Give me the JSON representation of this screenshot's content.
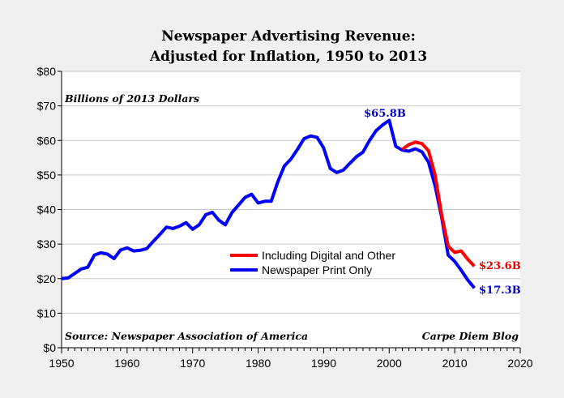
{
  "chart_data": {
    "type": "line",
    "title": [
      "Newspaper Advertising Revenue:",
      "Adjusted for Inflation, 1950 to 2013"
    ],
    "subtitle": "Billions of 2013 Dollars",
    "source": "Source: Newspaper Association of America",
    "credit": "Carpe Diem Blog",
    "xlim": [
      1950,
      2020
    ],
    "ylim": [
      0,
      80
    ],
    "xticks": [
      1950,
      1960,
      1970,
      1980,
      1990,
      2000,
      2010,
      2020
    ],
    "yticks": [
      0,
      10,
      20,
      30,
      40,
      50,
      60,
      70,
      80
    ],
    "ytick_labels": [
      "$0",
      "$10",
      "$20",
      "$30",
      "$40",
      "$50",
      "$60",
      "$70",
      "$80"
    ],
    "grid": "horizontal",
    "legend": "center-right",
    "series": [
      {
        "name": "Including Digital and Other",
        "color": "#ff0000",
        "x": [
          2002,
          2003,
          2004,
          2005,
          2006,
          2007,
          2008,
          2009,
          2010,
          2011,
          2012,
          2013
        ],
        "y": [
          57.4,
          58.8,
          59.5,
          59.1,
          57.0,
          50.0,
          38.5,
          29.4,
          27.6,
          28.0,
          25.6,
          23.6
        ]
      },
      {
        "name": "Newspaper Print Only",
        "color": "#0000ff",
        "x": [
          1950,
          1951,
          1952,
          1953,
          1954,
          1955,
          1956,
          1957,
          1958,
          1959,
          1960,
          1961,
          1962,
          1963,
          1964,
          1965,
          1966,
          1967,
          1968,
          1969,
          1970,
          1971,
          1972,
          1973,
          1974,
          1975,
          1976,
          1977,
          1978,
          1979,
          1980,
          1981,
          1982,
          1983,
          1984,
          1985,
          1986,
          1987,
          1988,
          1989,
          1990,
          1991,
          1992,
          1993,
          1994,
          1995,
          1996,
          1997,
          1998,
          1999,
          2000,
          2001,
          2002,
          2003,
          2004,
          2005,
          2006,
          2007,
          2008,
          2009,
          2010,
          2011,
          2012,
          2013
        ],
        "y": [
          20.0,
          20.2,
          21.5,
          22.8,
          23.3,
          26.8,
          27.5,
          27.1,
          25.8,
          28.3,
          28.9,
          28.0,
          28.2,
          28.7,
          30.8,
          32.8,
          34.9,
          34.5,
          35.2,
          36.2,
          34.3,
          35.6,
          38.5,
          39.2,
          36.9,
          35.6,
          39.1,
          41.3,
          43.5,
          44.4,
          41.9,
          42.4,
          42.4,
          48.0,
          52.6,
          54.6,
          57.4,
          60.5,
          61.3,
          60.9,
          57.8,
          51.9,
          50.7,
          51.4,
          53.4,
          55.3,
          56.6,
          60.0,
          62.8,
          64.5,
          65.8,
          58.3,
          57.2,
          56.9,
          57.6,
          56.7,
          53.7,
          46.9,
          37.8,
          26.8,
          25.0,
          22.4,
          19.6,
          17.3
        ]
      }
    ],
    "annotations": [
      {
        "text": "$65.8B",
        "x": 2000,
        "y": 65.8,
        "color": "#0000cc"
      },
      {
        "text": "$23.6B",
        "x": 2013,
        "y": 23.6,
        "color": "#ee0000"
      },
      {
        "text": "$17.3B",
        "x": 2013,
        "y": 17.3,
        "color": "#0000cc"
      }
    ]
  }
}
